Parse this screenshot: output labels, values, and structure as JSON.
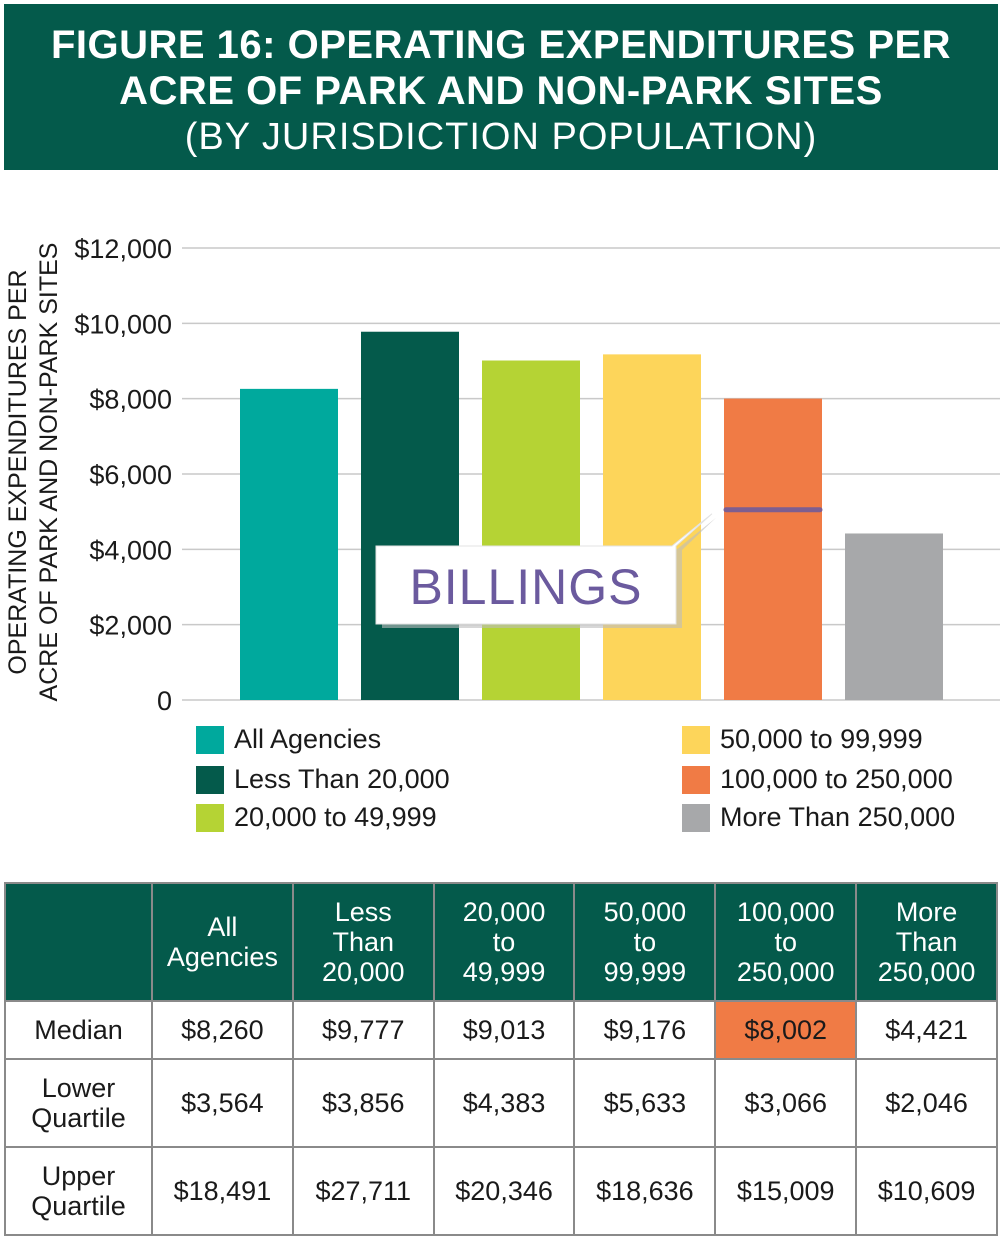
{
  "title": {
    "line1": "FIGURE 16: OPERATING EXPENDITURES PER",
    "line2": "ACRE OF PARK AND NON-PARK SITES",
    "line3": "(BY JURISDICTION POPULATION)"
  },
  "chart_data": {
    "type": "bar",
    "ylabel_line1": "OPERATING EXPENDITURES PER",
    "ylabel_line2": "ACRE OF PARK AND NON-PARK SITES",
    "ylim": [
      0,
      12000
    ],
    "yticks": [
      "0",
      "$2,000",
      "$4,000",
      "$6,000",
      "$8,000",
      "$10,000",
      "$12,000"
    ],
    "grid": true,
    "legend_position": "bottom",
    "categories": [
      "All Agencies",
      "Less Than 20,000",
      "20,000 to 49,999",
      "50,000 to 99,999",
      "100,000 to 250,000",
      "More Than 250,000"
    ],
    "values": [
      8260,
      9777,
      9013,
      9176,
      8002,
      4421
    ],
    "colors": [
      "#00a99d",
      "#045a4b",
      "#b5d334",
      "#fdd55a",
      "#f07b45",
      "#a7a8aa"
    ],
    "annotation": {
      "text": "BILLINGS",
      "category_index": 4,
      "value": 5050,
      "color": "#6b5a9e"
    }
  },
  "table": {
    "headers": [
      "",
      [
        "All",
        "Agencies"
      ],
      [
        "Less",
        "Than",
        "20,000"
      ],
      [
        "20,000",
        "to",
        "49,999"
      ],
      [
        "50,000",
        "to",
        "99,999"
      ],
      [
        "100,000",
        "to",
        "250,000"
      ],
      [
        "More",
        "Than",
        "250,000"
      ]
    ],
    "rows": [
      {
        "label": [
          "Median"
        ],
        "values": [
          "$8,260",
          "$9,777",
          "$9,013",
          "$9,176",
          "$8,002",
          "$4,421"
        ],
        "highlight_index": 4
      },
      {
        "label": [
          "Lower",
          "Quartile"
        ],
        "values": [
          "$3,564",
          "$3,856",
          "$4,383",
          "$5,633",
          "$3,066",
          "$2,046"
        ]
      },
      {
        "label": [
          "Upper",
          "Quartile"
        ],
        "values": [
          "$18,491",
          "$27,711",
          "$20,346",
          "$18,636",
          "$15,009",
          "$10,609"
        ]
      }
    ],
    "highlight_color": "#f07b45"
  }
}
